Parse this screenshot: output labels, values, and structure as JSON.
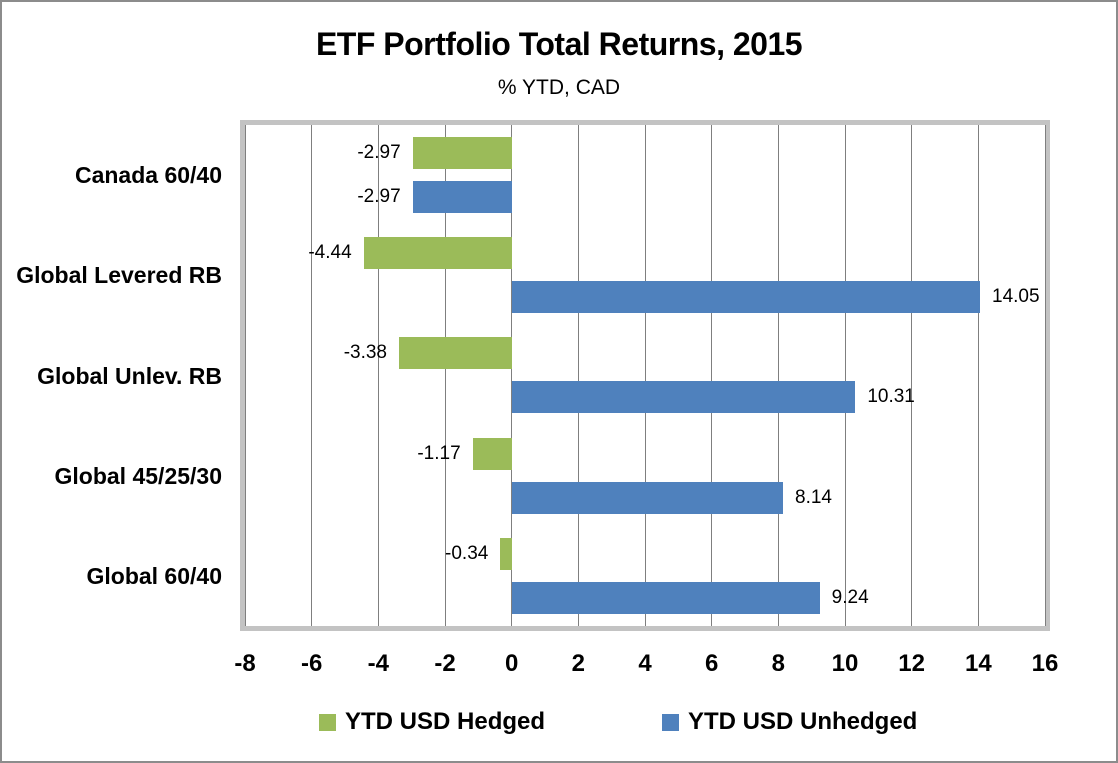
{
  "title": "ETF Portfolio Total Returns, 2015",
  "subtitle": "% YTD, CAD",
  "chart_data": {
    "type": "bar",
    "orientation": "horizontal",
    "title": "ETF Portfolio Total Returns, 2015",
    "subtitle": "% YTD, CAD",
    "categories": [
      "Canada 60/40",
      "Global Levered RB",
      "Global Unlev. RB",
      "Global 45/25/30",
      "Global 60/40"
    ],
    "series": [
      {
        "name": "YTD USD Hedged",
        "color": "#9BBB59",
        "values": [
          -2.97,
          -4.44,
          -3.38,
          -1.17,
          -0.34
        ]
      },
      {
        "name": "YTD USD Unhedged",
        "color": "#4F81BD",
        "values": [
          -2.97,
          14.05,
          10.31,
          8.14,
          9.24
        ]
      }
    ],
    "xlim": [
      -8,
      16
    ],
    "xticks": [
      -8,
      -6,
      -4,
      -2,
      0,
      2,
      4,
      6,
      8,
      10,
      12,
      14,
      16
    ],
    "grid": true,
    "gridline_color": "#7f7f7f",
    "plot_border_color": "#c3c3c3",
    "data_labels": true,
    "data_label_decimals": 2,
    "legend_position": "bottom"
  }
}
